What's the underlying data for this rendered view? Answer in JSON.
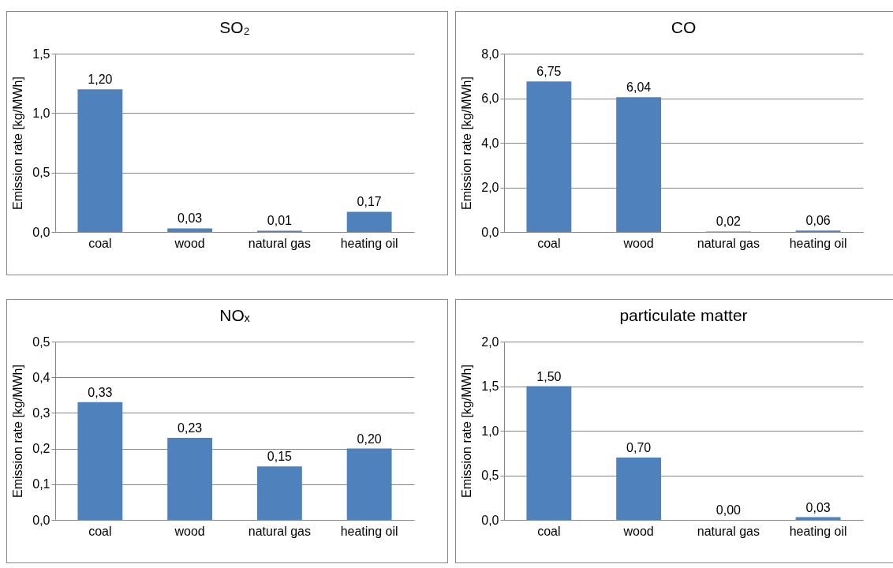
{
  "chart_data": [
    {
      "type": "bar",
      "title": "SO₂",
      "ylabel": "Emission rate [kg/MWh]",
      "categories": [
        "coal",
        "wood",
        "natural gas",
        "heating oil"
      ],
      "values": [
        1.2,
        0.03,
        0.01,
        0.17
      ],
      "value_labels": [
        "1,20",
        "0,03",
        "0,01",
        "0,17"
      ],
      "color": "#4f81bd",
      "ylim": [
        0,
        1.5
      ],
      "yticks": [
        {
          "value": 0,
          "label": "0,0"
        },
        {
          "value": 0.5,
          "label": "0,5"
        },
        {
          "value": 1,
          "label": "1,0"
        },
        {
          "value": 1.5,
          "label": "1,5"
        }
      ],
      "grid": "y"
    },
    {
      "type": "bar",
      "title": "CO",
      "ylabel": "Emission rate [kg/MWh]",
      "categories": [
        "coal",
        "wood",
        "natural gas",
        "heating oil"
      ],
      "values": [
        6.75,
        6.04,
        0.02,
        0.06
      ],
      "value_labels": [
        "6,75",
        "6,04",
        "0,02",
        "0,06"
      ],
      "color": "#4f81bd",
      "ylim": [
        0,
        8
      ],
      "yticks": [
        {
          "value": 0,
          "label": "0,0"
        },
        {
          "value": 2,
          "label": "2,0"
        },
        {
          "value": 4,
          "label": "4,0"
        },
        {
          "value": 6,
          "label": "6,0"
        },
        {
          "value": 8,
          "label": "8,0"
        }
      ],
      "grid": "y"
    },
    {
      "type": "bar",
      "title": "NOₓ",
      "ylabel": "Emission rate [kg/MWh]",
      "categories": [
        "coal",
        "wood",
        "natural gas",
        "heating oil"
      ],
      "values": [
        0.33,
        0.23,
        0.15,
        0.2
      ],
      "value_labels": [
        "0,33",
        "0,23",
        "0,15",
        "0,20"
      ],
      "color": "#4f81bd",
      "ylim": [
        0,
        0.5
      ],
      "yticks": [
        {
          "value": 0,
          "label": "0,0"
        },
        {
          "value": 0.1,
          "label": "0,1"
        },
        {
          "value": 0.2,
          "label": "0,2"
        },
        {
          "value": 0.3,
          "label": "0,3"
        },
        {
          "value": 0.4,
          "label": "0,4"
        },
        {
          "value": 0.5,
          "label": "0,5"
        }
      ],
      "grid": "y"
    },
    {
      "type": "bar",
      "title": "particulate matter",
      "ylabel": "Emission rate [kg/MWh]",
      "categories": [
        "coal",
        "wood",
        "natural gas",
        "heating oil"
      ],
      "values": [
        1.5,
        0.7,
        0,
        0.03
      ],
      "value_labels": [
        "1,50",
        "0,70",
        "0,00",
        "0,03"
      ],
      "color": "#4f81bd",
      "ylim": [
        0,
        2
      ],
      "yticks": [
        {
          "value": 0,
          "label": "0,0"
        },
        {
          "value": 0.5,
          "label": "0,5"
        },
        {
          "value": 1,
          "label": "1,0"
        },
        {
          "value": 1.5,
          "label": "1,5"
        },
        {
          "value": 2,
          "label": "2,0"
        }
      ],
      "grid": "y"
    }
  ]
}
